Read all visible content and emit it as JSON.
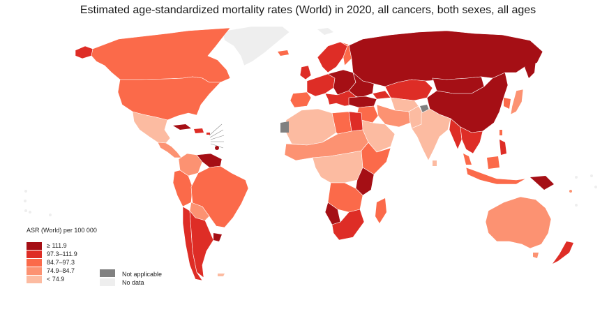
{
  "title": "Estimated age-standardized mortality rates (World) in 2020, all cancers, both sexes, all ages",
  "legend": {
    "title": "ASR (World) per 100 000",
    "classes": [
      {
        "label": "≥ 111.9",
        "color": "#a50f15"
      },
      {
        "label": "97.3–111.9",
        "color": "#de2d26"
      },
      {
        "label": "84.7–97.3",
        "color": "#fb6a4a"
      },
      {
        "label": "74.9–84.7",
        "color": "#fc9272"
      },
      {
        "label": "< 74.9",
        "color": "#fcbba1"
      }
    ],
    "special": [
      {
        "label": "Not applicable",
        "color": "#808080"
      },
      {
        "label": "No data",
        "color": "#eeeeee"
      }
    ]
  },
  "colors": {
    "border": "#ffffff",
    "ocean": "#ffffff"
  }
}
